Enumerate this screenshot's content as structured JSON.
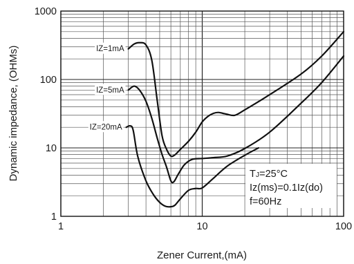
{
  "chart_data": {
    "type": "line",
    "title": "",
    "xlabel": "Zener Current,(mA)",
    "ylabel": "Dynamic impedance, (OHMs)",
    "x_scale": "log",
    "y_scale": "log",
    "xlim": [
      1,
      100
    ],
    "ylim": [
      1,
      1000
    ],
    "grid": true,
    "x_ticks": [
      "1",
      "10",
      "100"
    ],
    "y_ticks": [
      "1",
      "10",
      "100",
      "1000"
    ],
    "series": [
      {
        "name": "IZ=1mA",
        "x": [
          3.0,
          3.3,
          3.6,
          4.0,
          4.4,
          4.8,
          5.2,
          5.6,
          6.0,
          6.4,
          7.0,
          8.0,
          9.0,
          10.0,
          11.0,
          12.0,
          13.0,
          14.0,
          15.0,
          17.0,
          20.0,
          30.0,
          50.0,
          70.0,
          100.0
        ],
        "y": [
          280,
          330,
          345,
          320,
          190,
          50,
          15,
          9.5,
          7.6,
          7.9,
          9.5,
          12.5,
          17,
          24,
          29,
          32,
          33,
          32,
          31,
          30,
          36,
          60,
          120,
          220,
          500
        ]
      },
      {
        "name": "IZ=5mA",
        "x": [
          3.0,
          3.3,
          3.6,
          4.0,
          4.4,
          4.8,
          5.2,
          5.6,
          6.0,
          6.3,
          6.8,
          7.5,
          8.5,
          10.0,
          12.0,
          15.0,
          20.0,
          30.0,
          50.0,
          70.0,
          100.0
        ],
        "y": [
          70,
          80,
          70,
          48,
          27,
          14,
          8,
          5.2,
          3.3,
          3.2,
          4.2,
          5.7,
          6.8,
          7.0,
          7.2,
          7.6,
          9.8,
          17,
          45,
          90,
          220
        ]
      },
      {
        "name": "IZ=20mA",
        "x": [
          2.9,
          3.1,
          3.25,
          3.5,
          4.0,
          4.5,
          5.0,
          5.5,
          6.0,
          6.4,
          7.0,
          8.0,
          9.0,
          10.0,
          12.0,
          15.0,
          20.0,
          25.0
        ],
        "y": [
          20,
          21,
          18,
          7.5,
          3.3,
          2.1,
          1.6,
          1.4,
          1.38,
          1.45,
          1.8,
          2.4,
          2.55,
          2.6,
          3.6,
          5.4,
          7.8,
          10
        ]
      }
    ],
    "annotations": {
      "tj": "TJ=25°C",
      "tj_main": "T",
      "tj_sub": "J",
      "tj_rest": "=25°C",
      "iz_line": "Iz(ms)=0.1Iz(do)",
      "f_line": "f=60Hz"
    }
  }
}
